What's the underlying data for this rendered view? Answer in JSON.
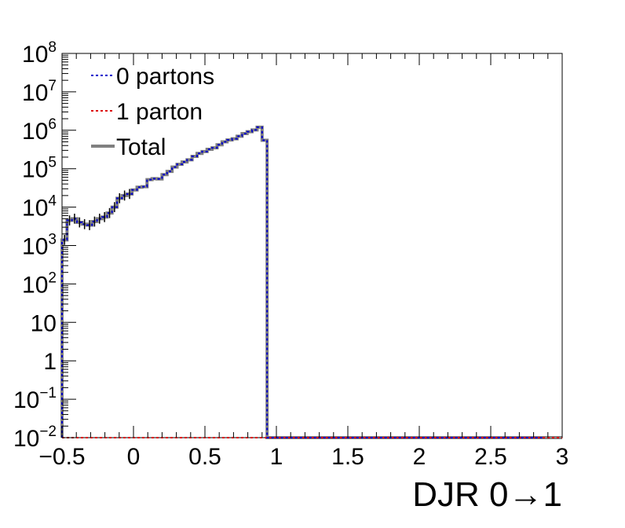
{
  "chart_data": {
    "type": "line",
    "xlabel": "DJR 0→1",
    "ylabel": "",
    "title": "",
    "xlim": [
      -0.5,
      3.0
    ],
    "ylim": [
      0.01,
      100000000
    ],
    "yscale": "log",
    "grid": false,
    "legend_placement": "top-left",
    "x_ticks": [
      "−0.5",
      "0",
      "0.5",
      "1",
      "1.5",
      "2",
      "2.5",
      "3"
    ],
    "x_tick_values": [
      -0.5,
      0,
      0.5,
      1,
      1.5,
      2,
      2.5,
      3
    ],
    "y_ticks": [
      {
        "value": 0.01,
        "base": "10",
        "exp": "−2"
      },
      {
        "value": 0.1,
        "base": "10",
        "exp": "−1"
      },
      {
        "value": 1,
        "base": "1",
        "exp": ""
      },
      {
        "value": 10,
        "base": "10",
        "exp": ""
      },
      {
        "value": 100,
        "base": "10",
        "exp": "2"
      },
      {
        "value": 1000,
        "base": "10",
        "exp": "3"
      },
      {
        "value": 10000,
        "base": "10",
        "exp": "4"
      },
      {
        "value": 100000,
        "base": "10",
        "exp": "5"
      },
      {
        "value": 1000000,
        "base": "10",
        "exp": "6"
      },
      {
        "value": 10000000,
        "base": "10",
        "exp": "7"
      },
      {
        "value": 100000000,
        "base": "10",
        "exp": "8"
      }
    ],
    "bin_edges": [
      -0.5,
      -0.465,
      -0.43,
      -0.395,
      -0.36,
      -0.325,
      -0.29,
      -0.255,
      -0.22,
      -0.185,
      -0.15,
      -0.115,
      -0.08,
      -0.045,
      -0.01,
      0.025,
      0.06,
      0.095,
      0.13,
      0.165,
      0.2,
      0.235,
      0.27,
      0.305,
      0.34,
      0.375,
      0.41,
      0.445,
      0.48,
      0.515,
      0.55,
      0.585,
      0.62,
      0.655,
      0.69,
      0.725,
      0.76,
      0.795,
      0.83,
      0.865,
      0.9,
      0.935,
      0.97,
      1.005,
      1.04,
      1.075,
      1.11,
      1.145,
      1.18,
      1.215,
      1.25,
      1.285,
      1.32,
      1.355,
      1.39,
      1.425,
      1.46,
      1.495,
      1.53,
      1.565,
      1.6,
      1.635,
      1.67,
      1.705,
      1.74,
      1.775,
      1.81,
      1.845,
      1.88,
      1.915,
      1.95,
      1.985,
      2.02,
      2.055,
      2.09,
      2.125,
      2.16,
      2.195,
      2.23,
      2.265,
      2.3,
      2.335,
      2.37,
      2.405,
      2.44,
      2.475,
      2.51,
      2.545,
      2.58,
      2.615,
      2.65,
      2.685,
      2.72,
      2.755,
      2.79,
      2.825,
      2.86,
      2.895,
      2.93,
      2.965,
      3.0
    ],
    "series": [
      {
        "name": "0 partons",
        "color": "#0000cc",
        "style": "dotted",
        "values": [
          1400,
          4500,
          5000,
          4000,
          3600,
          3400,
          4200,
          5000,
          5500,
          7000,
          10000,
          17000,
          20000,
          22000,
          28000,
          33000,
          34000,
          52000,
          55000,
          54000,
          70000,
          85000,
          110000,
          130000,
          150000,
          170000,
          210000,
          250000,
          280000,
          320000,
          350000,
          420000,
          500000,
          560000,
          600000,
          700000,
          820000,
          920000,
          1020000,
          1200000,
          550000,
          0.01,
          0.01,
          0.01,
          0.01,
          0.01,
          0.01,
          0.01,
          0.01,
          0.01,
          0.01,
          0.01,
          0.01,
          0.01,
          0.01,
          0.01,
          0.01,
          0.01,
          0.01,
          0.01,
          0.01,
          0.01,
          0.01,
          0.01,
          0.01,
          0.01,
          0.01,
          0.01,
          0.01,
          0.01,
          0.01,
          0.01,
          0.01,
          0.01,
          0.01,
          0.01,
          0.01,
          0.01,
          0.01,
          0.01,
          0.01,
          0.01,
          0.01,
          0.01,
          0.01,
          0.01,
          0.01,
          0.01,
          0.01,
          0.01,
          0.01,
          0.01,
          0.01,
          0.01,
          0.01,
          0.01
        ]
      },
      {
        "name": "1 parton",
        "color": "#dd0000",
        "style": "dotted",
        "values": [
          0.01,
          0.01,
          0.01,
          0.01,
          0.01,
          0.01,
          0.01,
          0.01,
          0.01,
          0.01,
          0.01,
          0.01,
          0.01,
          0.01,
          0.01,
          0.01,
          0.01,
          0.01,
          0.01,
          0.01,
          0.01,
          0.01,
          0.01,
          0.01,
          0.01,
          0.01,
          0.01,
          0.01,
          0.01,
          0.01,
          0.01,
          0.01,
          0.01,
          0.01,
          0.01,
          0.01,
          0.01,
          0.01,
          0.01,
          0.01,
          0.01,
          0.01,
          0.01,
          0.01,
          0.01,
          0.01,
          0.01,
          0.01,
          0.01,
          0.01,
          0.01,
          0.01,
          0.01,
          0.01,
          0.01,
          0.01,
          0.01,
          0.01,
          0.01,
          0.01,
          0.01,
          0.01,
          0.01,
          0.01,
          0.01,
          0.01,
          0.01,
          0.01,
          0.01,
          0.01,
          0.01,
          0.01,
          0.01,
          0.01,
          0.01,
          0.01,
          0.01,
          0.01,
          0.01,
          0.01,
          0.01,
          0.01,
          0.01,
          0.01,
          0.01,
          0.01,
          0.01,
          0.01,
          0.01,
          0.01,
          0.01,
          0.01,
          0.01,
          0.01,
          0.01,
          0.01,
          0.01,
          0.01,
          0.01,
          0.01
        ]
      },
      {
        "name": "Total",
        "color": "#808080",
        "style": "solid",
        "values": []
      }
    ]
  }
}
